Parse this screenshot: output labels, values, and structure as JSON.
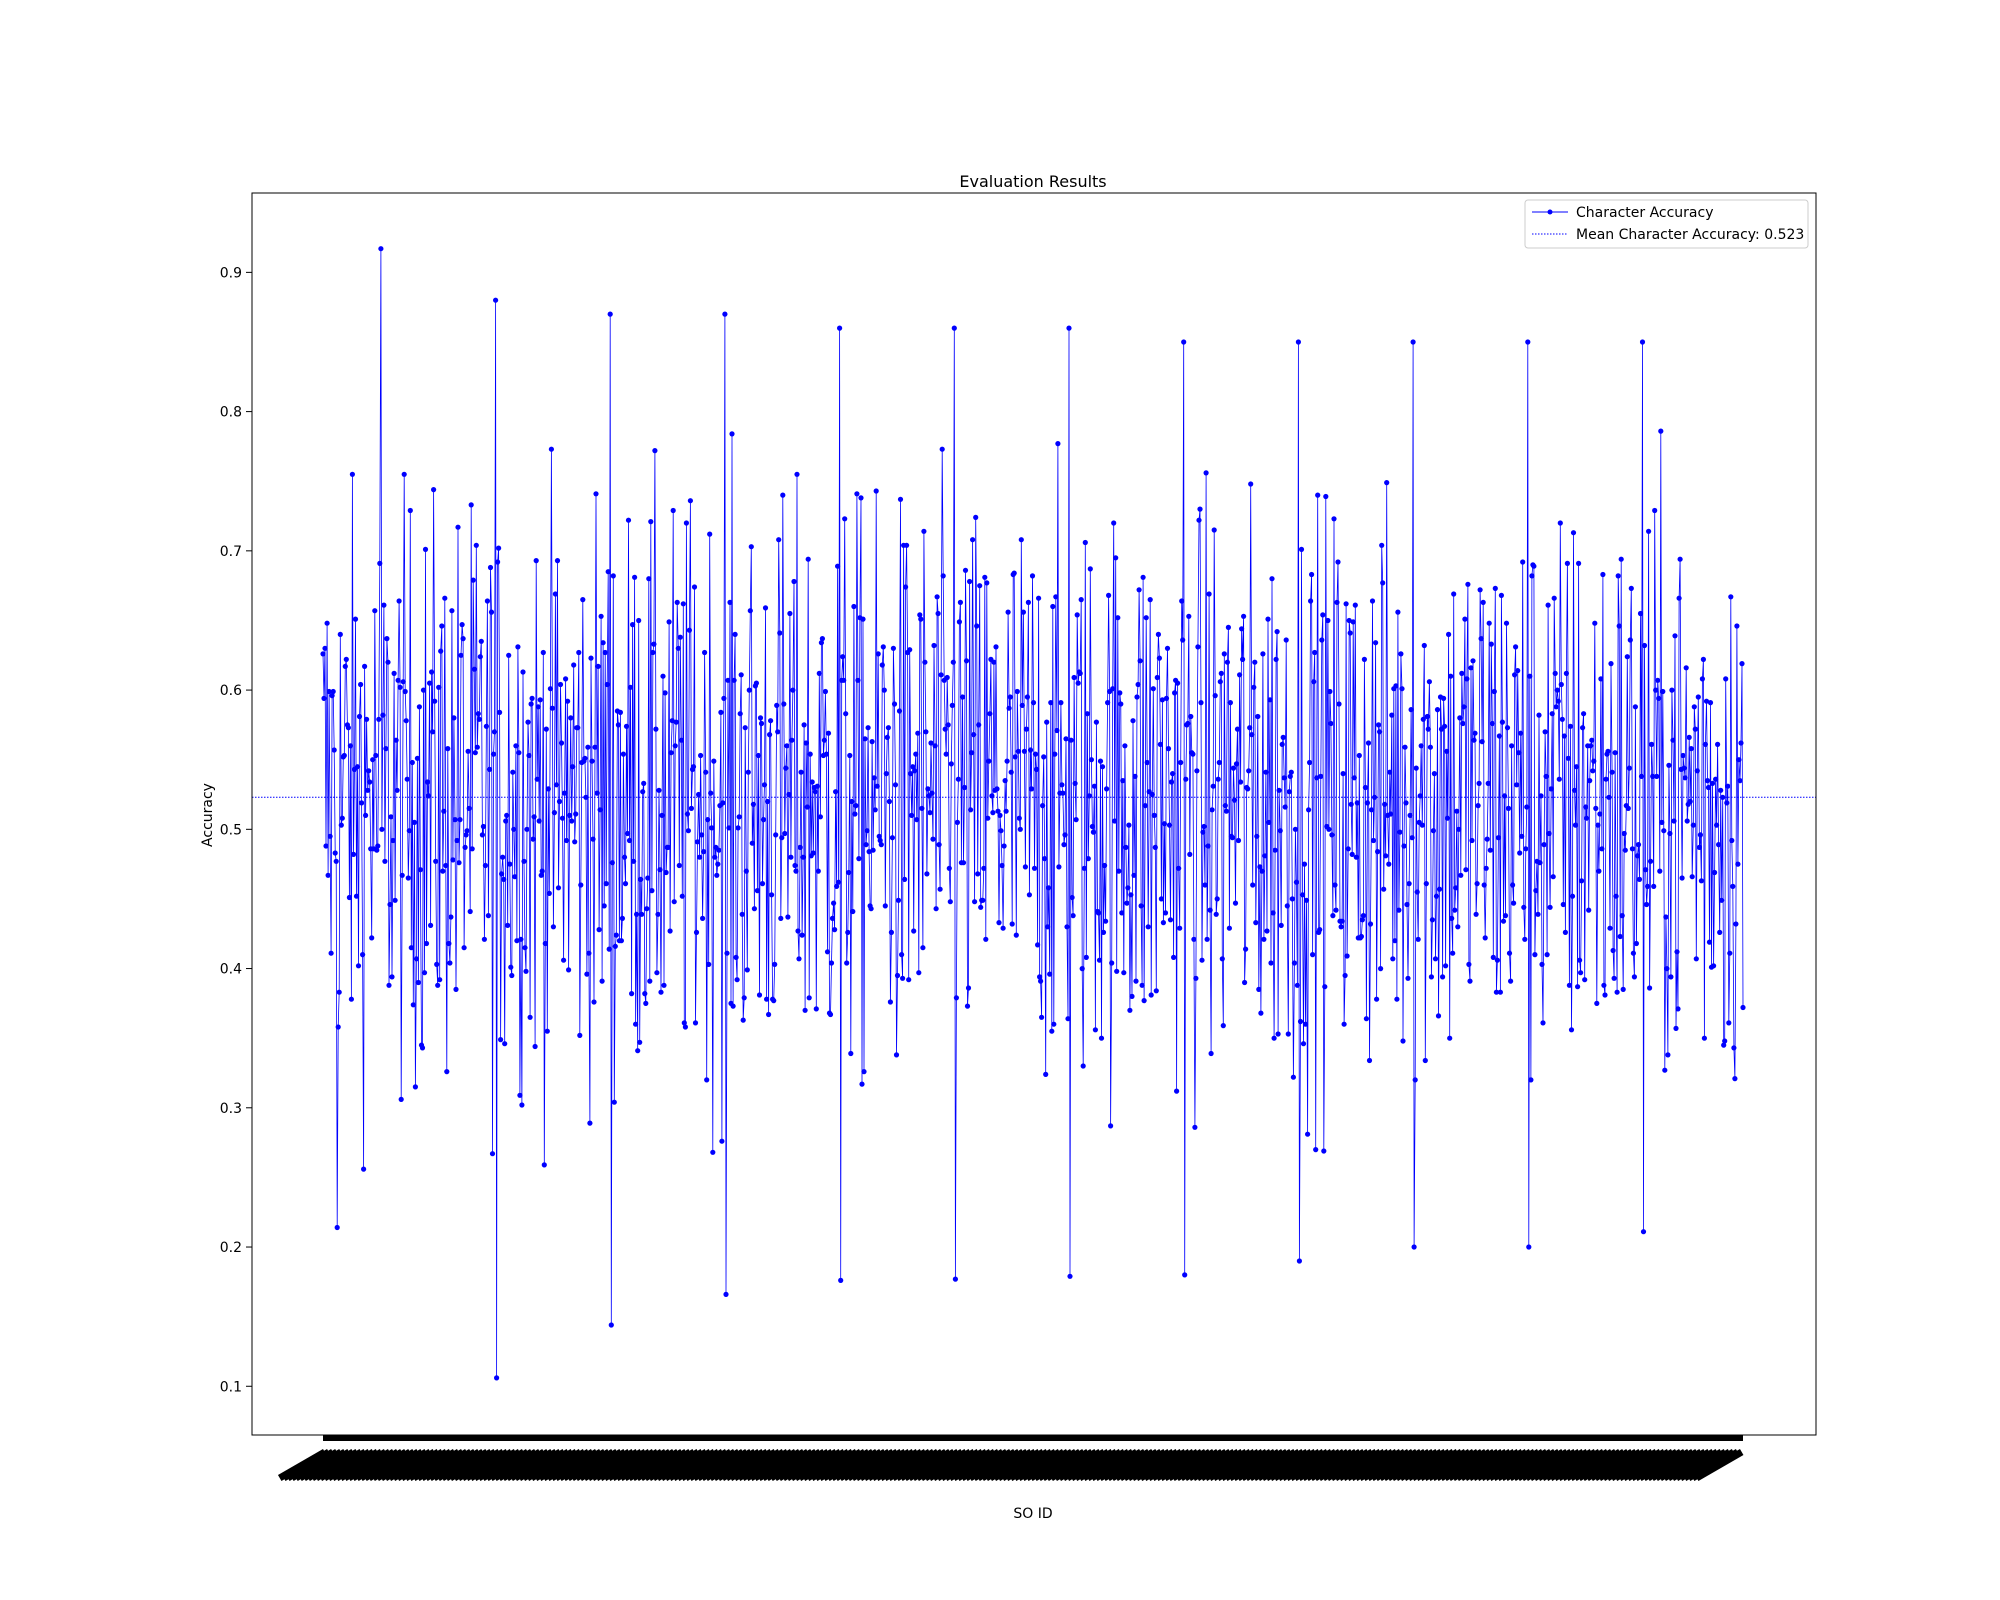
{
  "chart_data": {
    "type": "line",
    "title": "Evaluation Results",
    "xlabel": "SO ID",
    "ylabel": "Accuracy",
    "ylim": [
      0.065,
      0.957
    ],
    "yticks": [
      0.1,
      0.2,
      0.3,
      0.4,
      0.5,
      0.6,
      0.7,
      0.8,
      0.9
    ],
    "grid": false,
    "legend": "top-right",
    "x_tick_labels_note": "tick labels are illegible (overlapping, rotated)",
    "n_points": 1400,
    "series": [
      {
        "name": "Character Accuracy",
        "color": "#0000ff",
        "marker": "dot",
        "values": []
      },
      {
        "name": "Mean Character Accuracy: 0.523",
        "color": "#0000ff",
        "style": "dotted",
        "value": 0.523
      }
    ],
    "observed_peaks": [
      0.917,
      0.88,
      0.87,
      0.87,
      0.86,
      0.86,
      0.86,
      0.85,
      0.85,
      0.85,
      0.85,
      0.85
    ],
    "observed_troughs": [
      0.106,
      0.144,
      0.166,
      0.176,
      0.177,
      0.179,
      0.18,
      0.19,
      0.2,
      0.2,
      0.211,
      0.214
    ]
  }
}
